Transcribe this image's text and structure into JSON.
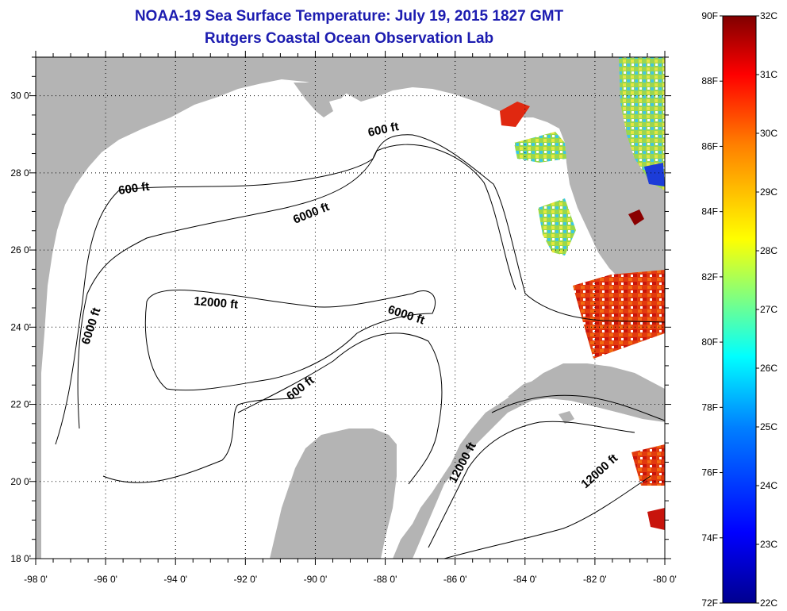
{
  "title_line1": "NOAA-19 Sea Surface Temperature:  July 19, 2015 1827 GMT",
  "title_line2": "Rutgers Coastal Ocean Observation Lab",
  "map": {
    "lon_range": [
      -98,
      -80
    ],
    "lat_range": [
      18,
      31
    ],
    "lon_ticks": [
      "-98 0'",
      "-96 0'",
      "-94 0'",
      "-92 0'",
      "-90 0'",
      "-88 0'",
      "-86 0'",
      "-84 0'",
      "-82 0'",
      "-80 0'"
    ],
    "lat_ticks": [
      "18 0'",
      "20 0'",
      "22 0'",
      "24 0'",
      "26 0'",
      "28 0'",
      "30 0'"
    ],
    "gridlines": "dotted",
    "land_color": "#b4b4b4",
    "contour_labels": [
      {
        "id": "c600-north",
        "text": "600 ft"
      },
      {
        "id": "c600-northwest",
        "text": "600 ft"
      },
      {
        "id": "c6000-north",
        "text": "6000 ft"
      },
      {
        "id": "c12000-gulf",
        "text": "12000 ft"
      },
      {
        "id": "c6000-west",
        "text": "6000 ft"
      },
      {
        "id": "c6000-east",
        "text": "6000 ft"
      },
      {
        "id": "c600-yucatan",
        "text": "600 ft"
      },
      {
        "id": "c12000-yucatan-channel",
        "text": "12000 ft"
      },
      {
        "id": "c12000-caribbean",
        "text": "12000 ft"
      }
    ]
  },
  "colorbar": {
    "fahrenheit": [
      "90F",
      "88F",
      "86F",
      "84F",
      "82F",
      "80F",
      "78F",
      "76F",
      "74F",
      "72F"
    ],
    "celsius": [
      "32C",
      "31C",
      "30C",
      "29C",
      "28C",
      "27C",
      "26C",
      "25C",
      "24C",
      "23C",
      "22C"
    ],
    "range_f": [
      72,
      90
    ],
    "range_c": [
      22,
      32
    ],
    "colors": [
      "#00008f",
      "#0000ff",
      "#0080ff",
      "#00ffff",
      "#80ff80",
      "#ffff00",
      "#ff8000",
      "#ff0000",
      "#800000"
    ]
  }
}
